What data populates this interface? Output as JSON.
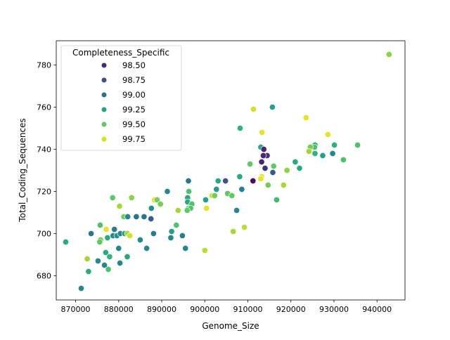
{
  "chart_data": {
    "type": "scatter",
    "title": "",
    "xlabel": "Genome_Size",
    "ylabel": "Total_Coding_Sequences",
    "xlim": [
      865500,
      946500
    ],
    "ylim": [
      668.5,
      791.5
    ],
    "xticks": [
      870000,
      880000,
      890000,
      900000,
      910000,
      920000,
      930000,
      940000
    ],
    "xtick_labels": [
      "870000",
      "880000",
      "890000",
      "900000",
      "910000",
      "920000",
      "930000",
      "940000"
    ],
    "yticks": [
      680,
      700,
      720,
      740,
      760,
      780
    ],
    "ytick_labels": [
      "680",
      "700",
      "720",
      "740",
      "760",
      "780"
    ],
    "grid": false,
    "legend": {
      "title": "Completeness_Specific",
      "position": "upper left",
      "entries": [
        {
          "label": "98.50",
          "color": "#472c7a"
        },
        {
          "label": "98.75",
          "color": "#3b528b"
        },
        {
          "label": "99.00",
          "color": "#2c728e"
        },
        {
          "label": "99.25",
          "color": "#21a685"
        },
        {
          "label": "99.50",
          "color": "#5ec962"
        },
        {
          "label": "99.75",
          "color": "#d8e219"
        }
      ]
    },
    "hue_range": [
      98.4,
      99.8
    ],
    "points": [
      {
        "x": 942800,
        "y": 785,
        "c": 99.55
      },
      {
        "x": 915700,
        "y": 760,
        "c": 99.2
      },
      {
        "x": 911300,
        "y": 759,
        "c": 99.7
      },
      {
        "x": 923500,
        "y": 755,
        "c": 99.75
      },
      {
        "x": 908200,
        "y": 750,
        "c": 99.3
      },
      {
        "x": 913300,
        "y": 748,
        "c": 99.75
      },
      {
        "x": 928600,
        "y": 747,
        "c": 99.75
      },
      {
        "x": 935500,
        "y": 742,
        "c": 99.4
      },
      {
        "x": 930100,
        "y": 742,
        "c": 99.3
      },
      {
        "x": 925600,
        "y": 742,
        "c": 99.3
      },
      {
        "x": 925500,
        "y": 741,
        "c": 99.4
      },
      {
        "x": 924500,
        "y": 741,
        "c": 99.5
      },
      {
        "x": 913000,
        "y": 741,
        "c": 99.25
      },
      {
        "x": 913700,
        "y": 740,
        "c": 98.55
      },
      {
        "x": 924200,
        "y": 739,
        "c": 99.6
      },
      {
        "x": 929700,
        "y": 738,
        "c": 99.05
      },
      {
        "x": 925600,
        "y": 738,
        "c": 99.3
      },
      {
        "x": 927400,
        "y": 737,
        "c": 99.2
      },
      {
        "x": 913900,
        "y": 737,
        "c": 98.55
      },
      {
        "x": 914500,
        "y": 737,
        "c": 98.6
      },
      {
        "x": 913600,
        "y": 737,
        "c": 98.55
      },
      {
        "x": 932200,
        "y": 735,
        "c": 99.4
      },
      {
        "x": 913200,
        "y": 734,
        "c": 98.55
      },
      {
        "x": 921000,
        "y": 734,
        "c": 99.25
      },
      {
        "x": 910500,
        "y": 733,
        "c": 99.45
      },
      {
        "x": 916000,
        "y": 732,
        "c": 99.45
      },
      {
        "x": 914000,
        "y": 731,
        "c": 98.6
      },
      {
        "x": 922000,
        "y": 731,
        "c": 99.25
      },
      {
        "x": 919100,
        "y": 730,
        "c": 99.55
      },
      {
        "x": 915800,
        "y": 729,
        "c": 98.8
      },
      {
        "x": 913200,
        "y": 727,
        "c": 99.75
      },
      {
        "x": 908100,
        "y": 727,
        "c": 99.25
      },
      {
        "x": 913000,
        "y": 726,
        "c": 99.75
      },
      {
        "x": 911200,
        "y": 725,
        "c": 98.45
      },
      {
        "x": 896200,
        "y": 725,
        "c": 98.95
      },
      {
        "x": 903100,
        "y": 725,
        "c": 99.25
      },
      {
        "x": 904800,
        "y": 725,
        "c": 98.75
      },
      {
        "x": 914700,
        "y": 723,
        "c": 99.5
      },
      {
        "x": 918300,
        "y": 723,
        "c": 99.6
      },
      {
        "x": 902700,
        "y": 721,
        "c": 99.15
      },
      {
        "x": 908600,
        "y": 721,
        "c": 99.0
      },
      {
        "x": 891300,
        "y": 720,
        "c": 99.05
      },
      {
        "x": 896300,
        "y": 720,
        "c": 99.4
      },
      {
        "x": 905300,
        "y": 719,
        "c": 99.45
      },
      {
        "x": 906300,
        "y": 718,
        "c": 99.45
      },
      {
        "x": 901700,
        "y": 718,
        "c": 99.7
      },
      {
        "x": 902300,
        "y": 718,
        "c": 99.5
      },
      {
        "x": 878600,
        "y": 717,
        "c": 99.45
      },
      {
        "x": 883000,
        "y": 717,
        "c": 99.55
      },
      {
        "x": 896000,
        "y": 717,
        "c": 99.25
      },
      {
        "x": 916700,
        "y": 716,
        "c": 99.35
      },
      {
        "x": 888300,
        "y": 716,
        "c": 99.75
      },
      {
        "x": 888900,
        "y": 716,
        "c": 99.5
      },
      {
        "x": 900200,
        "y": 716,
        "c": 99.2
      },
      {
        "x": 896000,
        "y": 715,
        "c": 99.25
      },
      {
        "x": 897000,
        "y": 714,
        "c": 99.4
      },
      {
        "x": 889700,
        "y": 714,
        "c": 99.5
      },
      {
        "x": 880200,
        "y": 713,
        "c": 99.6
      },
      {
        "x": 887600,
        "y": 712,
        "c": 99.1
      },
      {
        "x": 900400,
        "y": 712,
        "c": 99.75
      },
      {
        "x": 896200,
        "y": 712,
        "c": 99.5
      },
      {
        "x": 896700,
        "y": 712,
        "c": 99.4
      },
      {
        "x": 893800,
        "y": 711,
        "c": 99.6
      },
      {
        "x": 895900,
        "y": 711,
        "c": 99.45
      },
      {
        "x": 907400,
        "y": 711,
        "c": 99.05
      },
      {
        "x": 881200,
        "y": 708,
        "c": 99.5
      },
      {
        "x": 882100,
        "y": 708,
        "c": 99.05
      },
      {
        "x": 884100,
        "y": 708,
        "c": 98.95
      },
      {
        "x": 885900,
        "y": 708,
        "c": 98.95
      },
      {
        "x": 887500,
        "y": 707,
        "c": 98.8
      },
      {
        "x": 875700,
        "y": 704,
        "c": 99.4
      },
      {
        "x": 877100,
        "y": 702,
        "c": 99.75
      },
      {
        "x": 879000,
        "y": 702,
        "c": 99.0
      },
      {
        "x": 873600,
        "y": 700,
        "c": 98.95
      },
      {
        "x": 878700,
        "y": 699,
        "c": 99.05
      },
      {
        "x": 879600,
        "y": 699,
        "c": 99.1
      },
      {
        "x": 880400,
        "y": 700,
        "c": 99.05
      },
      {
        "x": 881400,
        "y": 700,
        "c": 99.1
      },
      {
        "x": 882000,
        "y": 700,
        "c": 99.6
      },
      {
        "x": 882600,
        "y": 699,
        "c": 99.7
      },
      {
        "x": 888100,
        "y": 700,
        "c": 99.0
      },
      {
        "x": 892300,
        "y": 701,
        "c": 99.2
      },
      {
        "x": 906600,
        "y": 701,
        "c": 99.6
      },
      {
        "x": 909200,
        "y": 703,
        "c": 99.65
      },
      {
        "x": 893400,
        "y": 704,
        "c": 99.4
      },
      {
        "x": 877400,
        "y": 698,
        "c": 99.25
      },
      {
        "x": 875800,
        "y": 697,
        "c": 99.5
      },
      {
        "x": 875600,
        "y": 696,
        "c": 99.45
      },
      {
        "x": 885000,
        "y": 697,
        "c": 99.05
      },
      {
        "x": 867700,
        "y": 696,
        "c": 99.25
      },
      {
        "x": 892100,
        "y": 698,
        "c": 99.05
      },
      {
        "x": 894800,
        "y": 699,
        "c": 99.0
      },
      {
        "x": 880000,
        "y": 693,
        "c": 99.05
      },
      {
        "x": 886500,
        "y": 693,
        "c": 99.05
      },
      {
        "x": 895500,
        "y": 693,
        "c": 99.05
      },
      {
        "x": 900000,
        "y": 692,
        "c": 99.65
      },
      {
        "x": 877000,
        "y": 691,
        "c": 99.25
      },
      {
        "x": 877900,
        "y": 689,
        "c": 99.3
      },
      {
        "x": 882000,
        "y": 689,
        "c": 99.25
      },
      {
        "x": 872700,
        "y": 688,
        "c": 99.6
      },
      {
        "x": 875200,
        "y": 687,
        "c": 99.05
      },
      {
        "x": 880300,
        "y": 686,
        "c": 99.05
      },
      {
        "x": 876700,
        "y": 685,
        "c": 99.05
      },
      {
        "x": 877600,
        "y": 683,
        "c": 99.4
      },
      {
        "x": 873000,
        "y": 682,
        "c": 99.25
      },
      {
        "x": 871300,
        "y": 674,
        "c": 99.05
      }
    ]
  }
}
